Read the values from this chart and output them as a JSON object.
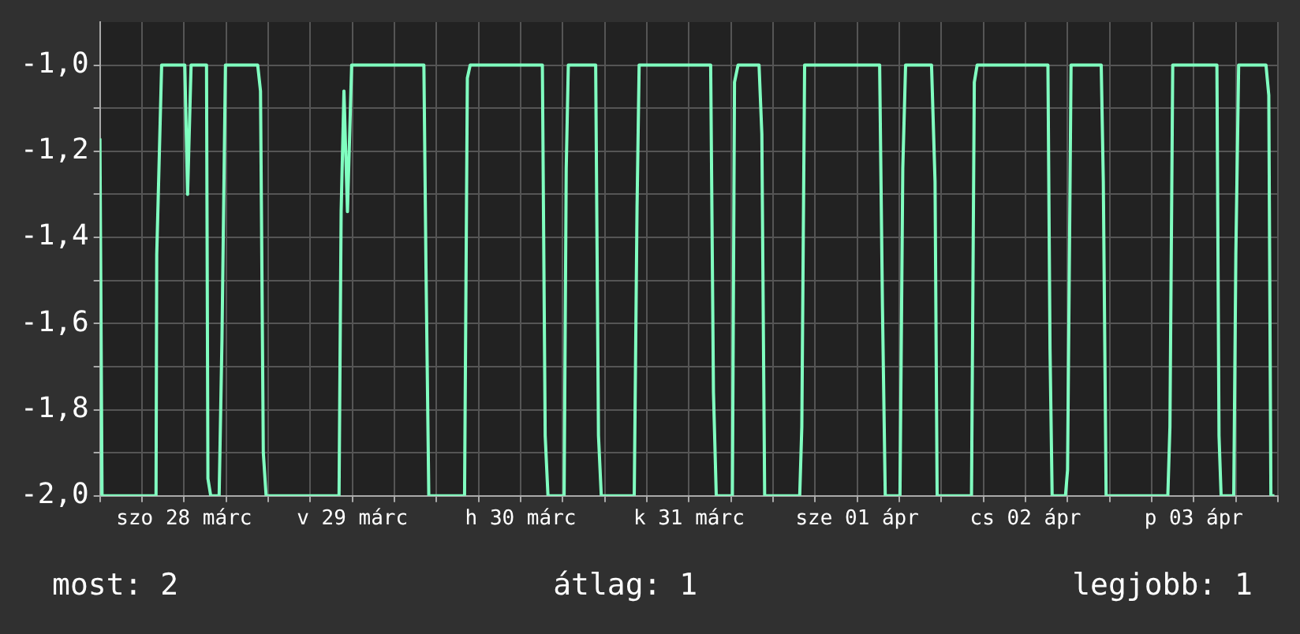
{
  "chart_data": {
    "type": "line",
    "x": [
      "--03-28T00:00",
      "--03-28T00:18",
      "--03-28T08:00",
      "--03-28T08:06",
      "--03-28T08:48",
      "--03-28T12:06",
      "--03-28T12:30",
      "--03-28T13:00",
      "--03-28T15:12",
      "--03-28T15:24",
      "--03-28T15:48",
      "--03-28T17:00",
      "--03-28T17:24",
      "--03-28T17:54",
      "--03-28T22:30",
      "--03-28T22:54",
      "--03-28T23:18",
      "--03-28T23:42",
      "--03-29T10:06",
      "--03-29T10:24",
      "--03-29T10:48",
      "--03-29T11:18",
      "--03-29T11:54",
      "--03-29T22:12",
      "--03-29T22:30",
      "--03-29T22:54",
      "--03-30T04:00",
      "--03-30T04:24",
      "--03-30T04:48",
      "--03-30T15:06",
      "--03-30T15:30",
      "--03-30T15:54",
      "--03-30T18:12",
      "--03-30T18:30",
      "--03-30T18:48",
      "--03-30T22:42",
      "--03-30T23:06",
      "--03-30T23:30",
      "--03-31T04:12",
      "--03-31T04:36",
      "--03-31T04:54",
      "--03-31T15:06",
      "--03-31T15:30",
      "--03-31T15:54",
      "--03-31T18:12",
      "--03-31T18:30",
      "--03-31T19:00",
      "--03-31T22:00",
      "--03-31T22:24",
      "--03-31T22:48",
      "--04-01T03:48",
      "--04-01T04:06",
      "--04-01T04:30",
      "--04-01T15:12",
      "--04-01T15:36",
      "--04-01T16:00",
      "--04-01T18:06",
      "--04-01T18:30",
      "--04-01T18:54",
      "--04-01T22:36",
      "--04-01T23:06",
      "--04-01T23:24",
      "--04-02T04:18",
      "--04-02T04:42",
      "--04-02T05:06",
      "--04-02T15:12",
      "--04-02T15:30",
      "--04-02T15:48",
      "--04-02T17:42",
      "--04-02T18:00",
      "--04-02T18:30",
      "--04-02T22:48",
      "--04-02T23:06",
      "--04-02T23:30",
      "--04-03T08:18",
      "--04-03T08:36",
      "--04-03T09:00",
      "--04-03T15:18",
      "--04-03T15:36",
      "--04-03T15:54",
      "--04-03T17:42",
      "--04-03T18:00",
      "--04-03T18:24",
      "--04-03T22:18",
      "--04-03T22:42",
      "--04-03T23:00",
      "--04-03T23:30"
    ],
    "series": [
      {
        "color": "#80ffc0",
        "values": [
          -1.17,
          -2,
          -2,
          -1.44,
          -1,
          -1,
          -1.3,
          -1,
          -1,
          -1.96,
          -2,
          -2,
          -1.64,
          -1,
          -1,
          -1.06,
          -1.9,
          -2,
          -2,
          -1.34,
          -1.06,
          -1.34,
          -1,
          -1,
          -1.47,
          -2,
          -2,
          -1.03,
          -1,
          -1,
          -1.86,
          -2,
          -2,
          -1.24,
          -1,
          -1,
          -1.86,
          -2,
          -2,
          -1.33,
          -1,
          -1,
          -1.76,
          -2,
          -2,
          -1.04,
          -1,
          -1,
          -1.16,
          -2,
          -2,
          -1.84,
          -1,
          -1,
          -1.56,
          -2,
          -2,
          -1.24,
          -1,
          -1,
          -1.27,
          -2,
          -2,
          -1.04,
          -1,
          -1,
          -1.66,
          -2,
          -2,
          -1.94,
          -1,
          -1,
          -1.27,
          -2,
          -2,
          -1.84,
          -1,
          -1,
          -1.86,
          -2,
          -2,
          -1.44,
          -1,
          -1,
          -1.07,
          -2,
          -2
        ]
      }
    ],
    "xlim": [
      "--03-28T00:00",
      "--04-04T00:00"
    ],
    "xticks": [
      {
        "value": "--03-28T00:00",
        "label": null
      },
      {
        "value": "--03-28T06:00",
        "label": null
      },
      {
        "value": "--03-28T12:00",
        "label": "szo 28 márc"
      },
      {
        "value": "--03-28T18:00",
        "label": null
      },
      {
        "value": "--03-29T00:00",
        "label": null
      },
      {
        "value": "--03-29T06:00",
        "label": null
      },
      {
        "value": "--03-29T12:00",
        "label": "v 29 márc"
      },
      {
        "value": "--03-29T18:00",
        "label": null
      },
      {
        "value": "--03-30T00:00",
        "label": null
      },
      {
        "value": "--03-30T06:00",
        "label": null
      },
      {
        "value": "--03-30T12:00",
        "label": "h 30 márc"
      },
      {
        "value": "--03-30T18:00",
        "label": null
      },
      {
        "value": "--03-31T00:00",
        "label": null
      },
      {
        "value": "--03-31T06:00",
        "label": null
      },
      {
        "value": "--03-31T12:00",
        "label": "k 31 márc"
      },
      {
        "value": "--03-31T18:00",
        "label": null
      },
      {
        "value": "--04-01T00:00",
        "label": null
      },
      {
        "value": "--04-01T06:00",
        "label": null
      },
      {
        "value": "--04-01T12:00",
        "label": "sze 01 ápr"
      },
      {
        "value": "--04-01T18:00",
        "label": null
      },
      {
        "value": "--04-02T00:00",
        "label": null
      },
      {
        "value": "--04-02T06:00",
        "label": null
      },
      {
        "value": "--04-02T12:00",
        "label": "cs 02 ápr"
      },
      {
        "value": "--04-02T18:00",
        "label": null
      },
      {
        "value": "--04-03T00:00",
        "label": null
      },
      {
        "value": "--04-03T06:00",
        "label": null
      },
      {
        "value": "--04-03T12:00",
        "label": "p 03 ápr"
      },
      {
        "value": "--04-03T18:00",
        "label": null
      },
      {
        "value": "--04-04T00:00",
        "label": null
      }
    ],
    "ylim": [
      -2.0,
      -0.9
    ],
    "yticks": [
      {
        "value": -2.0,
        "label": "-2,0"
      },
      {
        "value": -1.9,
        "label": null
      },
      {
        "value": -1.8,
        "label": "-1,8"
      },
      {
        "value": -1.7,
        "label": null
      },
      {
        "value": -1.6,
        "label": "-1,6"
      },
      {
        "value": -1.5,
        "label": null
      },
      {
        "value": -1.4,
        "label": "-1,4"
      },
      {
        "value": -1.3,
        "label": null
      },
      {
        "value": -1.2,
        "label": "-1,2"
      },
      {
        "value": -1.1,
        "label": null
      },
      {
        "value": -1.0,
        "label": "-1,0"
      }
    ],
    "grid": true,
    "legend": false,
    "marker": "none",
    "line_style": "solid",
    "annotations": [
      "most: 2",
      "átlag: 1",
      "legjobb: 1"
    ]
  }
}
